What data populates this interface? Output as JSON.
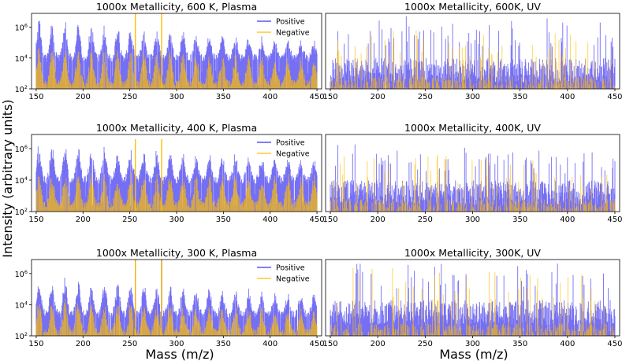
{
  "figure": {
    "ylabel": "Intensity (arbitrary units)",
    "xlabel_left": "Mass (m/z)",
    "xlabel_right": "Mass (m/z)",
    "colors": {
      "positive": "#3a32f0",
      "negative": "#ffbf00",
      "axis": "#000000"
    }
  },
  "chart_data": [
    {
      "type": "line",
      "title": "1000x Metallicity, 600 K, Plasma",
      "legend": [
        "Positive",
        "Negative"
      ],
      "legend_position": "top-right",
      "xlim": [
        145,
        455
      ],
      "ylim_log10": [
        2,
        6.9
      ],
      "xticks": [
        150,
        200,
        250,
        300,
        350,
        400,
        450
      ],
      "yticks": [
        {
          "exp": 2,
          "label": "10",
          "sup": "2"
        },
        {
          "exp": 4,
          "label": "10",
          "sup": "4"
        },
        {
          "exp": 6,
          "label": "10",
          "sup": "6"
        }
      ],
      "series": [
        {
          "name": "Positive",
          "color": "#3a32f0",
          "pattern": "clustered",
          "peak_log10_start": 6.5,
          "peak_log10_end": 5.0,
          "baseline_log10": 4.0,
          "cluster_period": 14
        },
        {
          "name": "Negative",
          "color": "#ffbf00",
          "pattern": "clustered",
          "peak_log10_start": 4.8,
          "peak_log10_end": 4.0,
          "baseline_log10": 2.3,
          "cluster_period": 14,
          "spikes": [
            {
              "x": 256,
              "log10": 6.9
            },
            {
              "x": 284,
              "log10": 6.9
            }
          ]
        }
      ]
    },
    {
      "type": "line",
      "title": "1000x Metallicity, 600K, UV",
      "xlim": [
        145,
        455
      ],
      "ylim_log10": [
        2,
        6.9
      ],
      "xticks": [
        150,
        200,
        250,
        300,
        350,
        400,
        450
      ],
      "series": [
        {
          "name": "Positive",
          "color": "#3a32f0",
          "pattern": "sparse",
          "peak_log10_start": 6.9,
          "peak_log10_end": 6.5,
          "baseline_log10": 3.2
        },
        {
          "name": "Negative",
          "color": "#ffbf00",
          "pattern": "sparse",
          "peak_log10_start": 6.0,
          "peak_log10_end": 5.5,
          "baseline_log10": 2.0
        }
      ]
    },
    {
      "type": "line",
      "title": "1000x Metallicity, 400 K, Plasma",
      "legend": [
        "Positive",
        "Negative"
      ],
      "legend_position": "top-right",
      "xlim": [
        145,
        455
      ],
      "ylim_log10": [
        2,
        6.9
      ],
      "xticks": [
        150,
        200,
        250,
        300,
        350,
        400,
        450
      ],
      "yticks": [
        {
          "exp": 2,
          "label": "10",
          "sup": "2"
        },
        {
          "exp": 4,
          "label": "10",
          "sup": "4"
        },
        {
          "exp": 6,
          "label": "10",
          "sup": "6"
        }
      ],
      "series": [
        {
          "name": "Positive",
          "color": "#3a32f0",
          "pattern": "clustered",
          "peak_log10_start": 6.3,
          "peak_log10_end": 5.3,
          "baseline_log10": 4.0,
          "cluster_period": 14
        },
        {
          "name": "Negative",
          "color": "#ffbf00",
          "pattern": "clustered",
          "peak_log10_start": 4.5,
          "peak_log10_end": 4.3,
          "baseline_log10": 2.4,
          "cluster_period": 14,
          "spikes": [
            {
              "x": 256,
              "log10": 6.6
            },
            {
              "x": 284,
              "log10": 6.6
            }
          ]
        }
      ]
    },
    {
      "type": "line",
      "title": "1000x Metallicity, 400K, UV",
      "xlim": [
        145,
        455
      ],
      "ylim_log10": [
        2,
        6.9
      ],
      "xticks": [
        150,
        200,
        250,
        300,
        350,
        400,
        450
      ],
      "series": [
        {
          "name": "Positive",
          "color": "#3a32f0",
          "pattern": "sparse",
          "peak_log10_start": 6.5,
          "peak_log10_end": 5.8,
          "baseline_log10": 3.2
        },
        {
          "name": "Negative",
          "color": "#ffbf00",
          "pattern": "sparse",
          "peak_log10_start": 6.0,
          "peak_log10_end": 5.0,
          "baseline_log10": 2.0
        }
      ]
    },
    {
      "type": "line",
      "title": "1000x Metallicity, 300 K, Plasma",
      "legend": [
        "Positive",
        "Negative"
      ],
      "legend_position": "top-right",
      "xlim": [
        145,
        455
      ],
      "ylim_log10": [
        2,
        6.9
      ],
      "xticks": [
        150,
        200,
        250,
        300,
        350,
        400,
        450
      ],
      "yticks": [
        {
          "exp": 2,
          "label": "10",
          "sup": "2"
        },
        {
          "exp": 4,
          "label": "10",
          "sup": "4"
        },
        {
          "exp": 6,
          "label": "10",
          "sup": "6"
        }
      ],
      "series": [
        {
          "name": "Positive",
          "color": "#3a32f0",
          "pattern": "clustered",
          "peak_log10_start": 5.8,
          "peak_log10_end": 4.6,
          "baseline_log10": 3.4,
          "cluster_period": 14,
          "spikes": [
            {
              "x": 256,
              "log10": 6.9
            },
            {
              "x": 284,
              "log10": 6.9
            }
          ]
        },
        {
          "name": "Negative",
          "color": "#ffbf00",
          "pattern": "clustered",
          "peak_log10_start": 4.4,
          "peak_log10_end": 3.6,
          "baseline_log10": 2.2,
          "cluster_period": 14,
          "spikes": [
            {
              "x": 256,
              "log10": 6.9
            },
            {
              "x": 284,
              "log10": 6.9
            }
          ]
        }
      ]
    },
    {
      "type": "line",
      "title": "1000x Metallicity, 300K, UV",
      "xlim": [
        145,
        455
      ],
      "ylim_log10": [
        2,
        6.9
      ],
      "xticks": [
        150,
        200,
        250,
        300,
        350,
        400,
        450
      ],
      "series": [
        {
          "name": "Positive",
          "color": "#3a32f0",
          "pattern": "sparse",
          "peak_log10_start": 6.9,
          "peak_log10_end": 6.7,
          "baseline_log10": 3.5
        },
        {
          "name": "Negative",
          "color": "#ffbf00",
          "pattern": "sparse",
          "peak_log10_start": 6.5,
          "peak_log10_end": 6.0,
          "baseline_log10": 2.0
        }
      ]
    }
  ]
}
